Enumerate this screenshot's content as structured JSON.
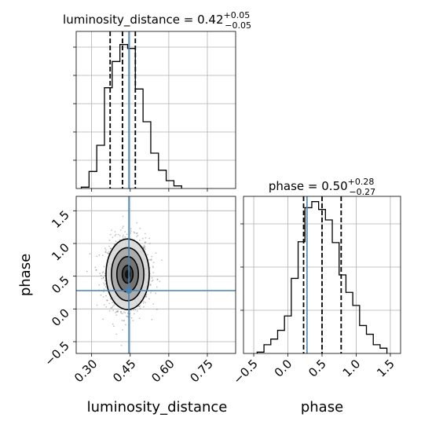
{
  "chart_data": [
    {
      "type": "histogram",
      "parameter": "luminosity_distance",
      "title_param": "luminosity_distance",
      "title_value": "0.42",
      "title_plus": "+0.05",
      "title_minus": "−0.05",
      "xlim": [
        0.24,
        0.86
      ],
      "bin_width": 0.03,
      "bin_edges_start": 0.26,
      "counts": [
        0.5,
        6.5,
        16.5,
        38.5,
        48.5,
        55.0,
        53.5,
        38.0,
        25.5,
        13.5,
        7.0,
        3.0,
        1.0
      ],
      "quantiles": [
        0.372,
        0.42,
        0.47
      ],
      "truth": 0.445,
      "ylim": [
        0,
        60
      ],
      "grid": true
    },
    {
      "type": "histogram",
      "parameter": "phase",
      "title_param": "phase",
      "title_value": "0.50",
      "title_plus": "+0.28",
      "title_minus": "−0.27",
      "xlim": [
        -0.65,
        1.65
      ],
      "bin_width": 0.1,
      "bin_edges_start": -0.45,
      "counts": [
        0.3,
        2.0,
        3.3,
        5.3,
        8.6,
        17.2,
        25.6,
        33.4,
        34.8,
        33.0,
        30.6,
        25.4,
        18.0,
        14.0,
        11.0,
        6.4,
        4.4,
        2.0,
        1.2
      ],
      "quantiles": [
        0.23,
        0.5,
        0.78
      ],
      "truth": 0.28,
      "ylim": [
        0,
        36
      ],
      "grid": true
    },
    {
      "type": "contour2d",
      "x_parameter": "luminosity_distance",
      "y_parameter": "phase",
      "xlim": [
        0.24,
        0.86
      ],
      "ylim": [
        -0.68,
        1.72
      ],
      "center": [
        0.44,
        0.53
      ],
      "sigma": [
        0.042,
        0.27
      ],
      "levels_sigma": [
        0.5,
        1.0,
        1.5,
        2.0
      ],
      "truth": [
        0.445,
        0.28
      ],
      "grid": true
    }
  ],
  "axes": {
    "x_label_bottom_left": "luminosity_distance",
    "x_label_bottom_right": "phase",
    "y_label_left": "phase",
    "lum_ticks": [
      "0.30",
      "0.45",
      "0.60",
      "0.75"
    ],
    "lum_tick_values": [
      0.3,
      0.45,
      0.6,
      0.75
    ],
    "phase_ticks": [
      "−0.5",
      "0.0",
      "0.5",
      "1.0",
      "1.5"
    ],
    "phase_tick_values": [
      -0.5,
      0.0,
      0.5,
      1.0,
      1.5
    ]
  },
  "colors": {
    "hist": "#000000",
    "truth": "#4682b4",
    "grid": "#b0b0b0",
    "points": "#555555",
    "frame": "#000000"
  }
}
